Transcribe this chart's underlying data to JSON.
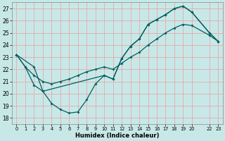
{
  "xlabel": "Humidex (Indice chaleur)",
  "background_color": "#c8e8e8",
  "grid_color": "#e8a8a8",
  "line_color": "#006060",
  "xlim": [
    -0.5,
    23.5
  ],
  "ylim": [
    17.5,
    27.5
  ],
  "xticks": [
    0,
    1,
    2,
    3,
    4,
    5,
    6,
    7,
    8,
    9,
    10,
    11,
    12,
    13,
    14,
    15,
    16,
    17,
    18,
    19,
    20,
    22,
    23
  ],
  "xtick_labels": [
    "0",
    "1",
    "2",
    "3",
    "4",
    "5",
    "6",
    "7",
    "8",
    "9",
    "10",
    "11",
    "12",
    "13",
    "14",
    "15",
    "16",
    "17",
    "18",
    "19",
    "20",
    "22",
    "23"
  ],
  "yticks": [
    18,
    19,
    20,
    21,
    22,
    23,
    24,
    25,
    26,
    27
  ],
  "curve1_x": [
    0,
    1,
    2,
    3,
    4,
    5,
    6,
    7,
    8,
    9,
    10,
    11,
    12,
    13,
    14,
    15,
    16,
    17,
    18,
    19,
    20,
    22,
    23
  ],
  "curve1_y": [
    23.2,
    22.2,
    20.7,
    20.2,
    19.2,
    18.7,
    18.4,
    18.5,
    19.5,
    20.8,
    21.5,
    21.2,
    22.9,
    23.9,
    24.5,
    25.7,
    26.1,
    26.5,
    27.0,
    27.2,
    26.7,
    25.0,
    24.3
  ],
  "curve2_x": [
    0,
    1,
    2,
    3,
    4,
    5,
    6,
    7,
    8,
    9,
    10,
    11,
    12,
    13,
    14,
    15,
    16,
    17,
    18,
    19,
    20,
    22,
    23
  ],
  "curve2_y": [
    23.2,
    22.2,
    21.5,
    21.0,
    20.8,
    21.0,
    21.2,
    21.5,
    21.8,
    22.0,
    22.2,
    22.0,
    22.5,
    23.0,
    23.4,
    24.0,
    24.5,
    25.0,
    25.4,
    25.7,
    25.6,
    24.8,
    24.3
  ],
  "curve3_x": [
    0,
    2,
    3,
    10,
    11,
    12,
    13,
    14,
    15,
    16,
    17,
    18,
    19,
    20,
    22,
    23
  ],
  "curve3_y": [
    23.2,
    22.2,
    20.2,
    21.5,
    21.2,
    22.9,
    23.9,
    24.5,
    25.7,
    26.1,
    26.5,
    27.0,
    27.2,
    26.7,
    25.0,
    24.3
  ],
  "figwidth": 3.2,
  "figheight": 2.0,
  "dpi": 100
}
